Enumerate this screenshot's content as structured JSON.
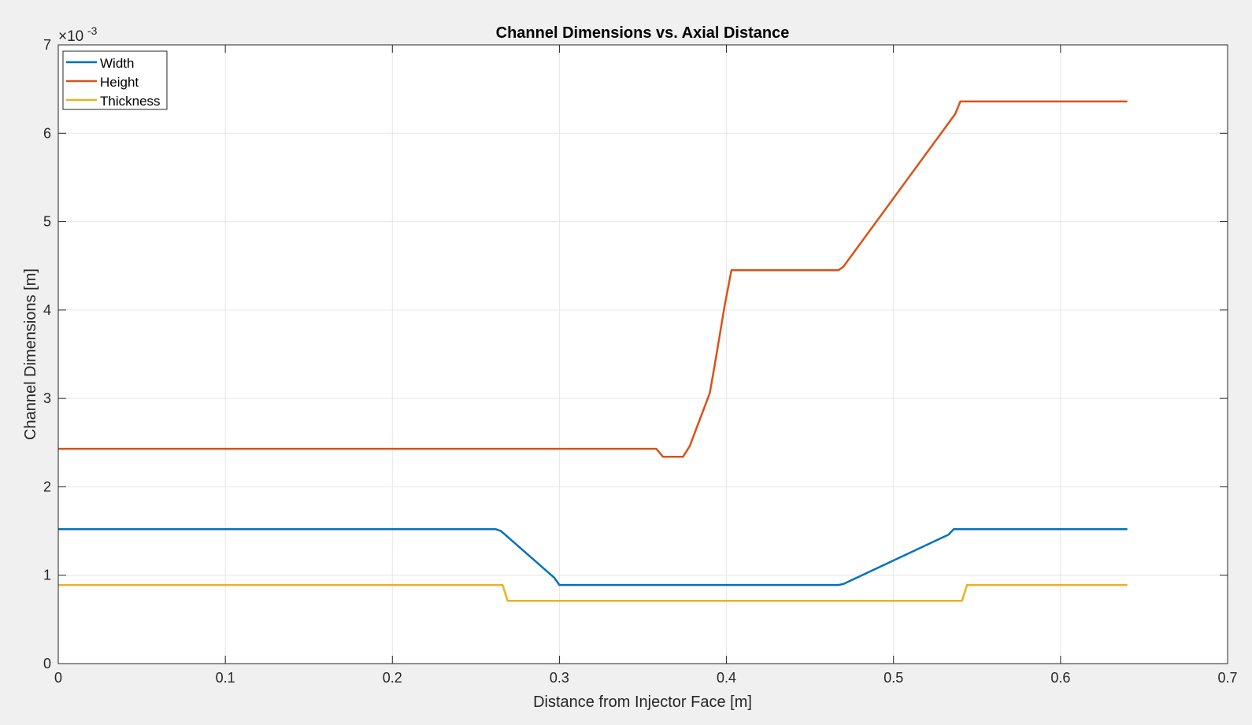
{
  "chart_data": {
    "type": "line",
    "title": "Channel Dimensions vs. Axial Distance",
    "xlabel": "Distance from Injector Face [m]",
    "ylabel": "Channel Dimensions [m]",
    "exponent_base": "×10",
    "exponent_power": "-3",
    "xlim": [
      0,
      0.7
    ],
    "ylim": [
      0,
      7
    ],
    "y_scale_factor": 0.001,
    "xticks": [
      0,
      0.1,
      0.2,
      0.3,
      0.4,
      0.5,
      0.6,
      0.7
    ],
    "xtick_labels": [
      "0",
      "0.1",
      "0.2",
      "0.3",
      "0.4",
      "0.5",
      "0.6",
      "0.7"
    ],
    "yticks": [
      0,
      1,
      2,
      3,
      4,
      5,
      6,
      7
    ],
    "ytick_labels": [
      "0",
      "1",
      "2",
      "3",
      "4",
      "5",
      "6",
      "7"
    ],
    "grid": true,
    "legend_position": "top-left",
    "series": [
      {
        "name": "Width",
        "color": "#0072BD",
        "x": [
          0,
          0.262,
          0.265,
          0.297,
          0.3,
          0.467,
          0.47,
          0.533,
          0.536,
          0.64
        ],
        "y": [
          1.52,
          1.52,
          1.5,
          0.97,
          0.89,
          0.89,
          0.9,
          1.46,
          1.52,
          1.52
        ]
      },
      {
        "name": "Height",
        "color": "#D95319",
        "x": [
          0,
          0.358,
          0.362,
          0.374,
          0.378,
          0.39,
          0.393,
          0.399,
          0.403,
          0.467,
          0.47,
          0.537,
          0.54,
          0.64
        ],
        "y": [
          2.43,
          2.43,
          2.34,
          2.34,
          2.46,
          3.06,
          3.38,
          4.06,
          4.45,
          4.45,
          4.49,
          6.22,
          6.36,
          6.36
        ]
      },
      {
        "name": "Thickness",
        "color": "#EDB120",
        "x": [
          0,
          0.266,
          0.269,
          0.541,
          0.544,
          0.64
        ],
        "y": [
          0.89,
          0.89,
          0.71,
          0.71,
          0.89,
          0.89
        ]
      }
    ]
  }
}
